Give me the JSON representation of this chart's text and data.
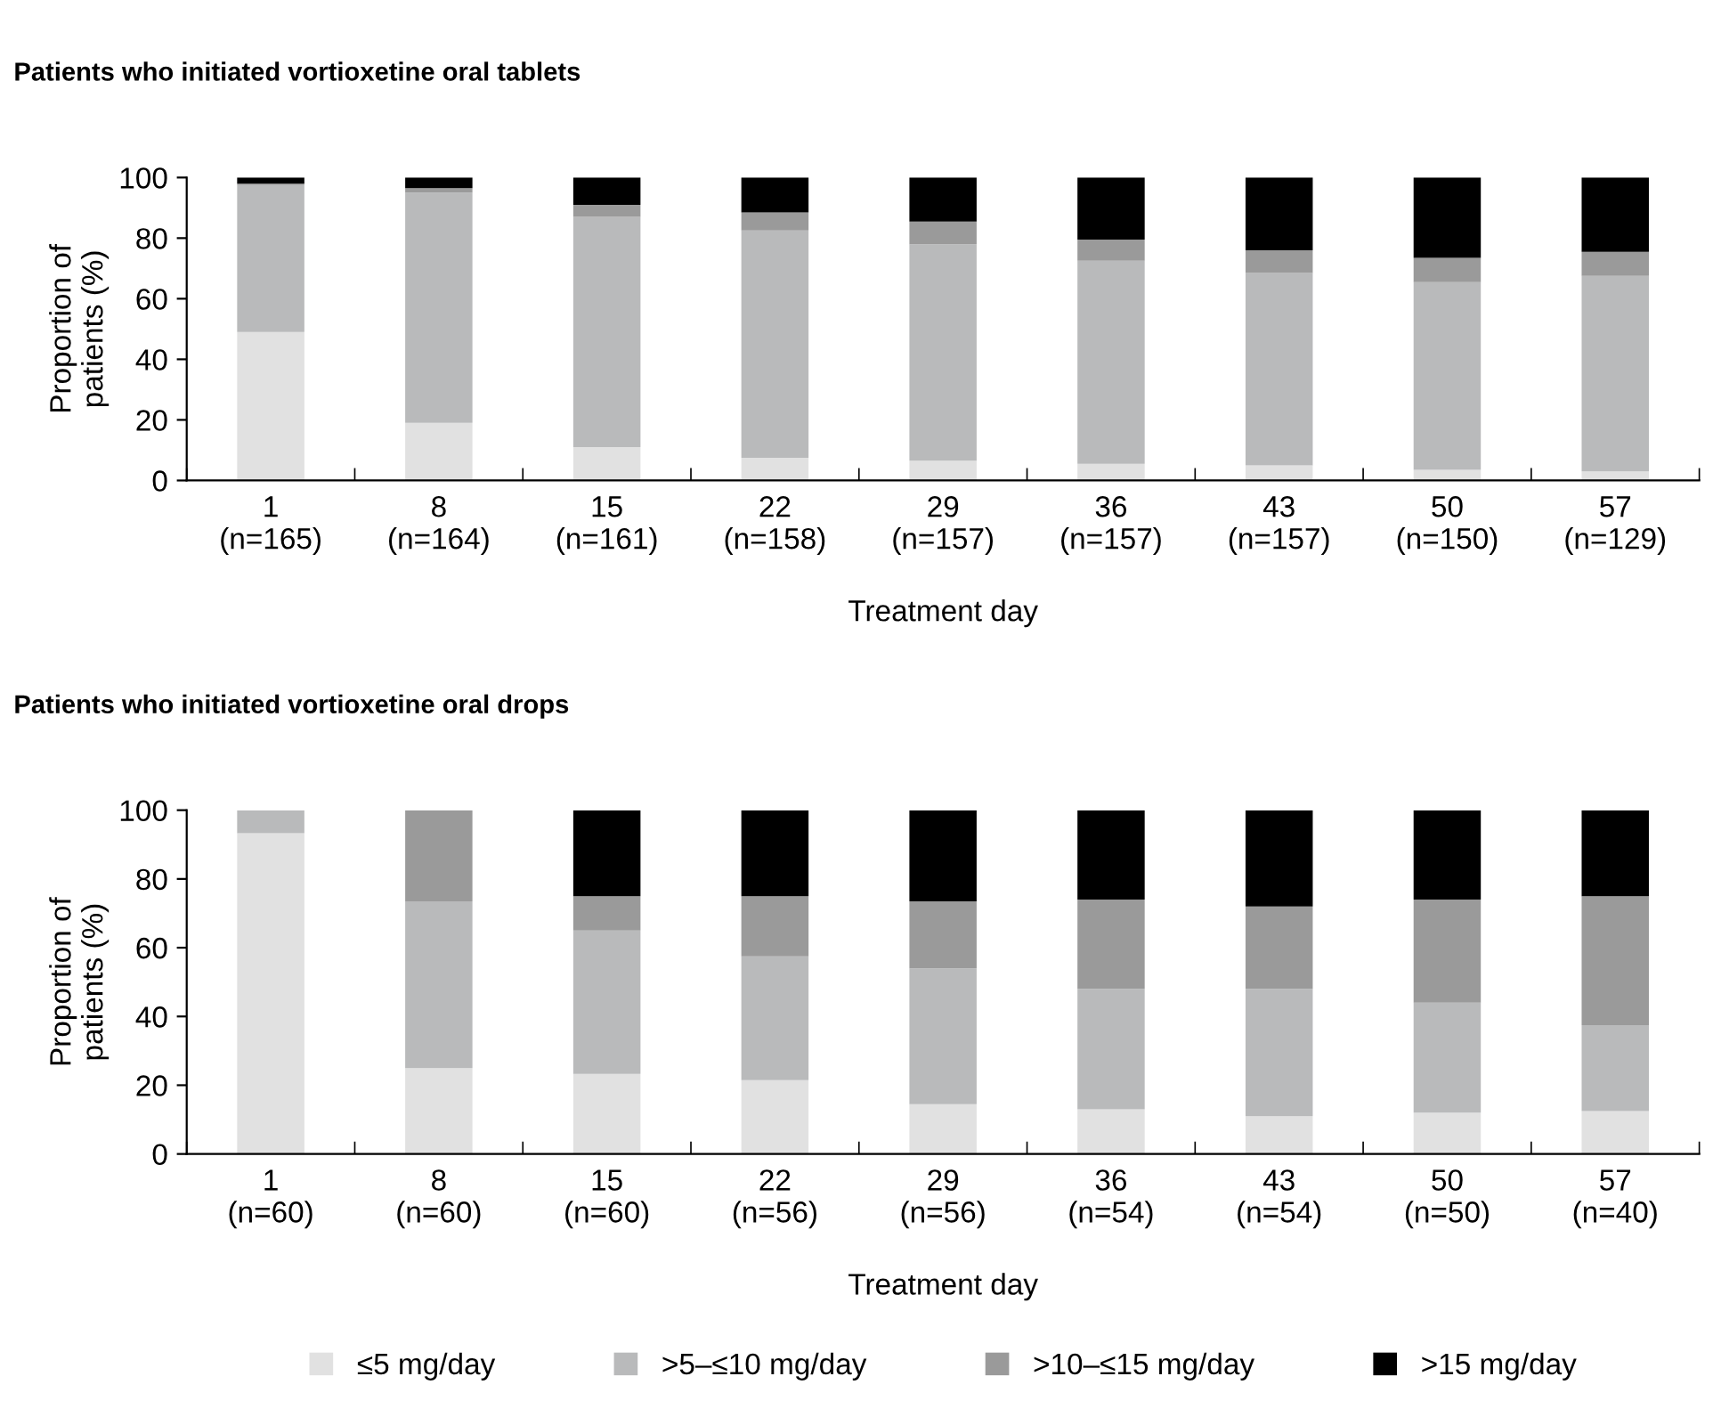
{
  "chart_data": [
    {
      "type": "bar",
      "title": "Patients who initiated vortioxetine oral tablets",
      "xlabel": "Treatment day",
      "ylabel": "Proportion of\npatients (%)",
      "stacked": true,
      "ylim": [
        0,
        100
      ],
      "yticks": [
        0,
        20,
        40,
        60,
        80,
        100
      ],
      "grid": false,
      "legend": false,
      "categories": [
        "1\n(n=165)",
        "8\n(n=164)",
        "15\n(n=161)",
        "22\n(n=158)",
        "29\n(n=157)",
        "36\n(n=157)",
        "43\n(n=157)",
        "50\n(n=150)",
        "57\n(n=129)"
      ],
      "series": [
        {
          "color": "#e1e1e1",
          "values": [
            49,
            19,
            11,
            7.5,
            6.5,
            5.5,
            5,
            3.5,
            3
          ]
        },
        {
          "color": "#b9babb",
          "values": [
            48.5,
            76,
            76,
            75,
            71.5,
            67,
            63.5,
            62,
            64.5
          ]
        },
        {
          "color": "#9a9a9a",
          "values": [
            0.5,
            1.5,
            4,
            6,
            7.5,
            7,
            7.5,
            8,
            8
          ]
        },
        {
          "color": "#000000",
          "values": [
            2,
            3.5,
            9,
            11.5,
            14.5,
            20.5,
            24,
            26.5,
            24.5
          ]
        }
      ]
    },
    {
      "type": "bar",
      "title": "Patients who initiated vortioxetine oral drops",
      "xlabel": "Treatment day",
      "ylabel": "Proportion of\npatients (%)",
      "stacked": true,
      "ylim": [
        0,
        100
      ],
      "yticks": [
        0,
        20,
        40,
        60,
        80,
        100
      ],
      "grid": false,
      "legend": "bottom",
      "categories": [
        "1\n(n=60)",
        "8\n(n=60)",
        "15\n(n=60)",
        "22\n(n=56)",
        "29\n(n=56)",
        "36\n(n=54)",
        "43\n(n=54)",
        "50\n(n=50)",
        "57\n(n=40)"
      ],
      "series": [
        {
          "name": "≤5 mg/day",
          "color": "#e1e1e1",
          "values": [
            93.3,
            25,
            23.3,
            21.5,
            14.5,
            13,
            11,
            12,
            12.5
          ]
        },
        {
          "name": ">5–≤10 mg/day",
          "color": "#b9babb",
          "values": [
            6.7,
            48.5,
            41.7,
            36,
            39.5,
            35,
            37,
            32,
            25
          ]
        },
        {
          "name": ">10–≤15 mg/day",
          "color": "#9a9a9a",
          "values": [
            0,
            26.5,
            10,
            17.5,
            19.5,
            26,
            24,
            30,
            37.5
          ]
        },
        {
          "name": ">15 mg/day",
          "color": "#000000",
          "values": [
            0,
            0,
            25,
            25,
            26.5,
            26,
            28,
            26,
            25
          ]
        }
      ]
    }
  ]
}
